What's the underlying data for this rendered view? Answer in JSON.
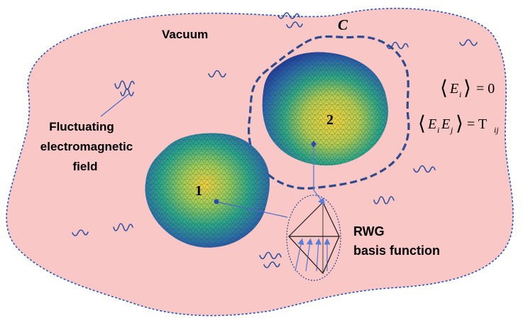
{
  "labels": {
    "vacuum": "Vacuum",
    "contour": "C",
    "field_line1": "Fluctuating",
    "field_line2": "electromagnetic",
    "field_line3": "field",
    "rwg_line1": "RWG",
    "rwg_line2": "basis function",
    "body1": "1",
    "body2": "2"
  },
  "equations": {
    "eq1_lhs": "E",
    "eq1_sub": "i",
    "eq1_rhs": "= 0",
    "eq2_lhs1": "E",
    "eq2_sub1": "i",
    "eq2_lhs2": "E",
    "eq2_sub2": "j",
    "eq2_rhs": "= T",
    "eq2_rhs_sub": "ij"
  },
  "colors": {
    "region_fill": "#f9c8c6",
    "region_border": "#2a56b8",
    "contour_stroke": "#2e4a8e",
    "wave_stroke": "#3050a0",
    "rwg_stroke": "#5a7ed8",
    "body_blue": "#1f4fa0",
    "body_teal": "#2aa088",
    "body_yellow": "#e8c840"
  }
}
